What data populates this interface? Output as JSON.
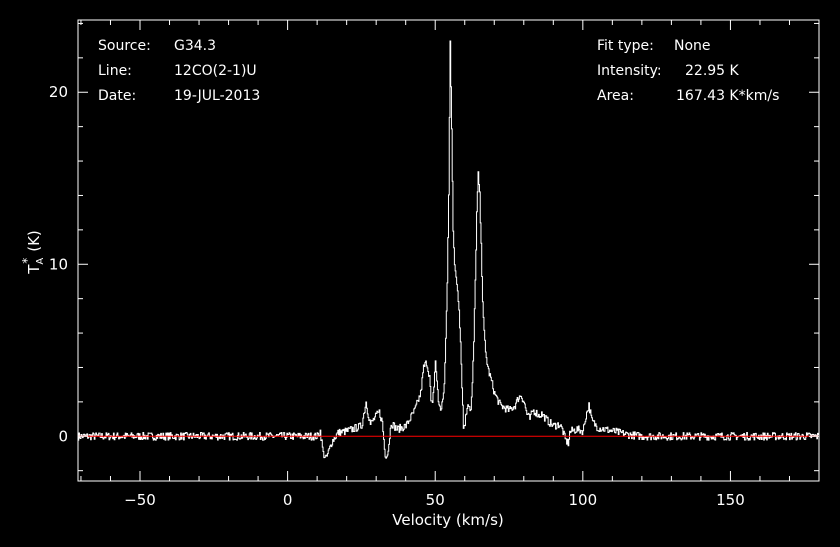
{
  "info": {
    "source_label": "Source:",
    "source_value": "G34.3",
    "line_label": "Line:",
    "line_value": "12CO(2-1)U",
    "date_label": "Date:",
    "date_value": "19-JUL-2013",
    "fit_label": "Fit type:",
    "fit_value": "None",
    "intensity_label": "Intensity:",
    "intensity_value": "22.95 K",
    "area_label": "Area:",
    "area_value": "167.43 K*km/s"
  },
  "colors": {
    "background": "#000000",
    "frame": "#ffffff",
    "spectrum": "#ffffff",
    "baseline": "#ff0000"
  },
  "chart_data": {
    "type": "line",
    "xlabel": "Velocity (km/s)",
    "ylabel": "T",
    "ylabel_sub": "A",
    "ylabel_sup": "*",
    "ylabel_unit": "(K)",
    "xlim": [
      -71,
      180
    ],
    "ylim": [
      -2.6,
      24.2
    ],
    "xticks": [
      -50,
      0,
      50,
      100,
      150
    ],
    "yticks": [
      0,
      10,
      20
    ],
    "baseline_y": 0,
    "grid": false,
    "series": [
      {
        "x": [
          -71,
          -30,
          -20,
          0,
          10,
          11,
          12,
          13,
          15,
          17,
          20,
          25,
          26.5,
          27,
          28,
          30,
          31,
          32,
          33,
          34,
          35,
          37,
          40,
          43,
          45,
          46,
          47,
          48,
          48.5,
          49,
          49.5,
          50,
          51,
          52,
          53,
          53.5,
          54,
          54.5,
          55,
          55.5,
          56,
          56.5,
          57,
          57.5,
          58,
          58.5,
          59,
          59.5,
          60,
          61,
          62,
          62.5,
          63,
          63.5,
          64,
          64.5,
          65,
          65.5,
          66,
          66.5,
          67,
          68,
          69,
          70,
          72,
          75,
          77,
          78,
          79,
          80,
          81,
          82,
          83,
          84,
          85,
          86,
          87,
          88,
          90,
          92,
          93,
          94,
          95,
          95.5,
          96,
          98,
          100,
          101,
          102,
          103,
          105,
          110,
          115,
          120,
          130,
          140,
          150,
          160,
          170,
          180
        ],
        "y": [
          0,
          0,
          0,
          0,
          0,
          0.3,
          -1.0,
          -1.3,
          -0.3,
          0.2,
          0.3,
          0.6,
          2.0,
          1.5,
          0.7,
          1.2,
          1.4,
          0.8,
          -1.2,
          -0.8,
          0.8,
          0.4,
          0.6,
          1.5,
          2.5,
          4.0,
          4.3,
          3.5,
          2.0,
          1.8,
          3.0,
          4.4,
          2.0,
          1.5,
          3.0,
          5.5,
          9.0,
          14.0,
          22.95,
          18.0,
          12.0,
          9.8,
          9.3,
          8.5,
          7.5,
          5.5,
          3.0,
          0.5,
          0.8,
          2.0,
          1.5,
          3.0,
          5.5,
          9.0,
          13.0,
          15.2,
          14.0,
          11.0,
          8.0,
          6.0,
          4.8,
          3.8,
          3.2,
          2.5,
          1.8,
          1.5,
          1.8,
          2.2,
          2.4,
          2.0,
          1.3,
          1.0,
          1.5,
          1.4,
          1.2,
          1.3,
          1.1,
          0.9,
          0.6,
          0.7,
          0.4,
          -0.2,
          -0.4,
          0.2,
          0.3,
          0.4,
          0.3,
          1.2,
          1.8,
          0.9,
          0.5,
          0.3,
          0.1,
          0,
          0,
          0,
          0,
          0,
          0,
          0
        ]
      }
    ]
  }
}
